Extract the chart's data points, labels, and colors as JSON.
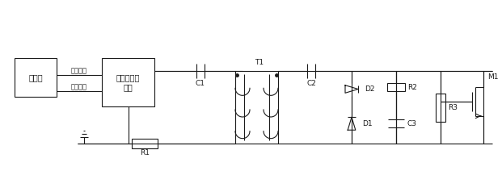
{
  "bg_color": "#ffffff",
  "line_color": "#1a1a1a",
  "text_color": "#1a1a1a",
  "fig_width": 6.21,
  "fig_height": 2.17,
  "dpi": 100,
  "labels": {
    "oscillator": "振荡器",
    "carrier": "载波信号",
    "switch": "开关信号",
    "control_chip": "控制或驱动\n芯片",
    "T1": "T1",
    "M1": "M1",
    "C1": "C1",
    "C2": "C2",
    "C3": "C3",
    "R1": "R1",
    "R2": "R2",
    "R3": "R3",
    "D1": "D1",
    "D2": "D2"
  }
}
